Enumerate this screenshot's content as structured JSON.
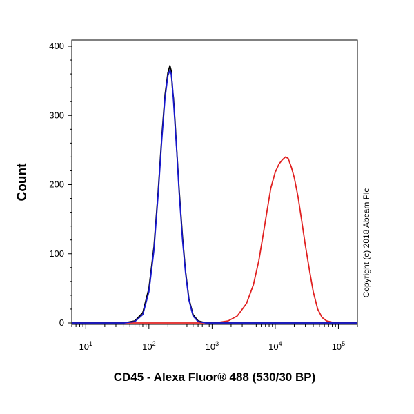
{
  "chart_data": {
    "type": "line",
    "xlabel": "CD45 - Alexa Fluor® 488 (530/30 BP)",
    "ylabel": "Count",
    "x_scale": "log",
    "xlim": [
      6,
      200000
    ],
    "ylim": [
      0,
      400
    ],
    "x_ticks": [
      {
        "base": "10",
        "exp": "1",
        "value": 10
      },
      {
        "base": "10",
        "exp": "2",
        "value": 100
      },
      {
        "base": "10",
        "exp": "3",
        "value": 1000
      },
      {
        "base": "10",
        "exp": "4",
        "value": 10000
      },
      {
        "base": "10",
        "exp": "5",
        "value": 100000
      }
    ],
    "y_ticks": [
      {
        "label": "0",
        "value": 0
      },
      {
        "label": "100",
        "value": 100
      },
      {
        "label": "200",
        "value": 200
      },
      {
        "label": "300",
        "value": 300
      },
      {
        "label": "400",
        "value": 400
      }
    ],
    "grid": false,
    "legend": "none",
    "series": [
      {
        "color": "#e02020",
        "x": [
          6,
          500,
          900,
          1300,
          1800,
          2500,
          3500,
          4500,
          5500,
          6500,
          7500,
          8500,
          10000,
          11500,
          13000,
          14500,
          16000,
          18000,
          20000,
          23000,
          26000,
          30000,
          35000,
          40000,
          47000,
          55000,
          65000,
          80000,
          200000
        ],
        "y": [
          0,
          0,
          0,
          1,
          3,
          10,
          28,
          55,
          90,
          130,
          165,
          195,
          218,
          230,
          236,
          240,
          238,
          225,
          210,
          182,
          150,
          112,
          75,
          45,
          20,
          8,
          3,
          1,
          0
        ]
      },
      {
        "color": "#000000",
        "x": [
          6,
          40,
          60,
          80,
          100,
          120,
          140,
          160,
          180,
          200,
          215,
          225,
          235,
          245,
          260,
          280,
          300,
          340,
          380,
          430,
          500,
          600,
          800,
          1000,
          200000
        ],
        "y": [
          0,
          0,
          3,
          15,
          50,
          110,
          190,
          270,
          330,
          362,
          372,
          365,
          340,
          325,
          290,
          240,
          195,
          125,
          75,
          35,
          12,
          3,
          0,
          0,
          0
        ]
      },
      {
        "color": "#1818cc",
        "x": [
          6,
          40,
          60,
          80,
          100,
          120,
          140,
          160,
          180,
          200,
          215,
          225,
          235,
          245,
          260,
          280,
          300,
          340,
          380,
          430,
          500,
          600,
          800,
          1000,
          200000
        ],
        "y": [
          0,
          0,
          2,
          12,
          45,
          105,
          185,
          265,
          325,
          358,
          365,
          360,
          345,
          320,
          285,
          238,
          190,
          120,
          72,
          33,
          10,
          2,
          0,
          0,
          0
        ]
      }
    ]
  },
  "copyright": "Copyright (c) 2018 Abcam Plc",
  "colors": {
    "axis": "#000000",
    "background": "#ffffff"
  }
}
